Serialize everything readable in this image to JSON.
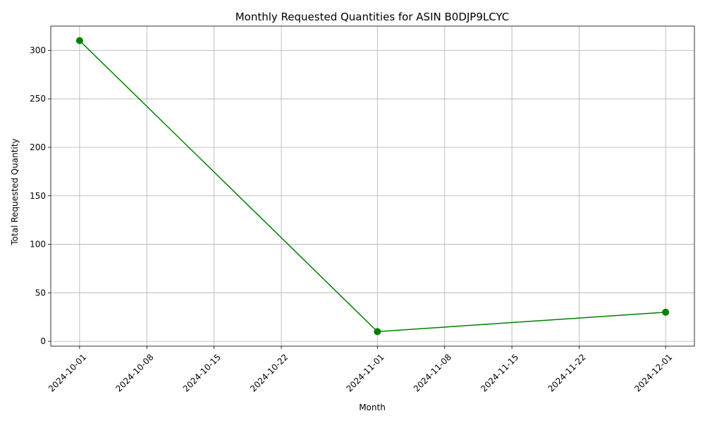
{
  "chart_data": {
    "type": "line",
    "title": "Monthly Requested Quantities for ASIN B0DJP9LCYC",
    "xlabel": "Month",
    "ylabel": "Total Requested Quantity",
    "x": [
      "2024-10-01",
      "2024-11-01",
      "2024-12-01"
    ],
    "series": [
      {
        "values": [
          310,
          10,
          30
        ]
      }
    ],
    "x_ticks": [
      "2024-10-01",
      "2024-10-08",
      "2024-10-15",
      "2024-10-22",
      "2024-11-01",
      "2024-11-08",
      "2024-11-15",
      "2024-11-22",
      "2024-12-01"
    ],
    "y_ticks": [
      0,
      50,
      100,
      150,
      200,
      250,
      300
    ],
    "xlim": [
      "2024-09-28",
      "2024-12-04"
    ],
    "ylim": [
      -5,
      325
    ],
    "grid": true,
    "line_color": "#008000",
    "marker": "circle"
  }
}
